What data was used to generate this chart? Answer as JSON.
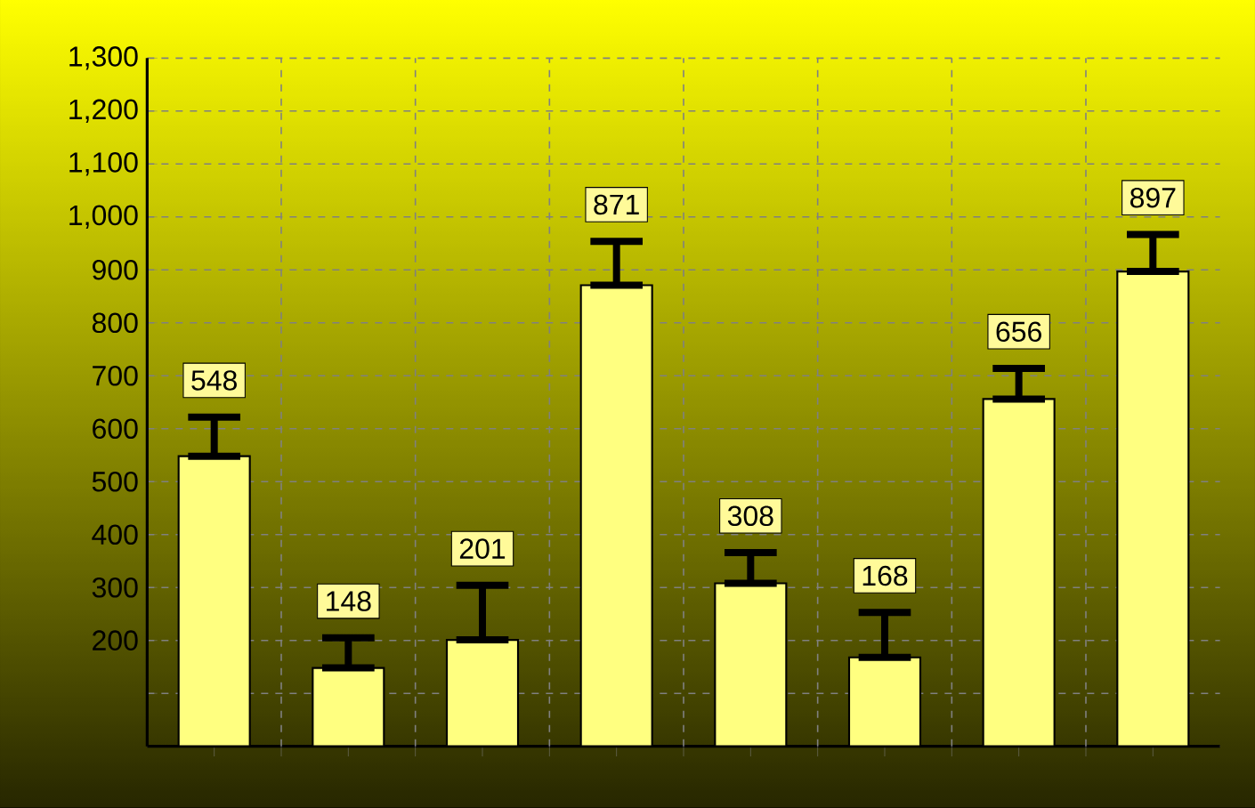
{
  "chart_data": {
    "type": "bar",
    "categories": [
      null,
      null,
      null,
      null,
      null,
      null,
      null,
      null
    ],
    "values": [
      548,
      148,
      201,
      871,
      308,
      168,
      656,
      897
    ],
    "errors": [
      [
        548,
        622
      ],
      [
        148,
        205
      ],
      [
        201,
        304
      ],
      [
        871,
        954
      ],
      [
        308,
        366
      ],
      [
        168,
        253
      ],
      [
        656,
        714
      ],
      [
        897,
        967
      ]
    ],
    "color": "#ffff80",
    "data_labels": true,
    "grid": true,
    "ylim": [
      0,
      1300
    ],
    "yticks": [
      {
        "value": 0,
        "label": null
      },
      {
        "value": 100,
        "label": null
      },
      200,
      300,
      400,
      500,
      600,
      700,
      800,
      900,
      {
        "value": 1000,
        "label": "1,000"
      },
      {
        "value": 1100,
        "label": "1,100"
      },
      {
        "value": 1200,
        "label": "1,200"
      },
      {
        "value": 1300,
        "label": "1,300"
      }
    ]
  }
}
